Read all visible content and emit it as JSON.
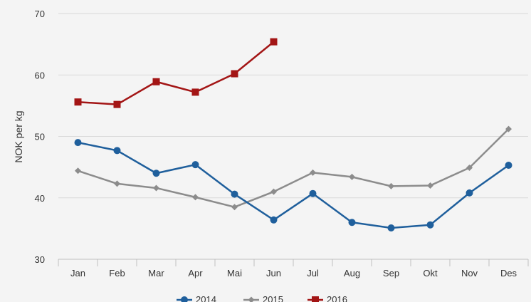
{
  "chart_data": {
    "type": "line",
    "title": "",
    "xlabel": "",
    "ylabel": "NOK per kg",
    "ylim": [
      30,
      70
    ],
    "yticks": [
      30,
      40,
      50,
      60,
      70
    ],
    "grid": true,
    "legend_position": "bottom",
    "categories": [
      "Jan",
      "Feb",
      "Mar",
      "Apr",
      "Mai",
      "Jun",
      "Jul",
      "Aug",
      "Sep",
      "Okt",
      "Nov",
      "Des"
    ],
    "series": [
      {
        "name": "2014",
        "color": "#1f5f9c",
        "marker": "circle",
        "values": [
          49.0,
          47.7,
          44.0,
          45.4,
          40.6,
          36.4,
          40.7,
          36.0,
          35.1,
          35.6,
          40.8,
          45.3
        ]
      },
      {
        "name": "2015",
        "color": "#8c8c8c",
        "marker": "diamond",
        "values": [
          44.4,
          42.3,
          41.6,
          40.1,
          38.5,
          41.0,
          44.1,
          43.4,
          41.9,
          42.0,
          44.9,
          51.2
        ]
      },
      {
        "name": "2016",
        "color": "#a31515",
        "marker": "square",
        "values": [
          55.6,
          55.2,
          58.9,
          57.2,
          60.2,
          65.4,
          null,
          null,
          null,
          null,
          null,
          null
        ]
      }
    ]
  }
}
